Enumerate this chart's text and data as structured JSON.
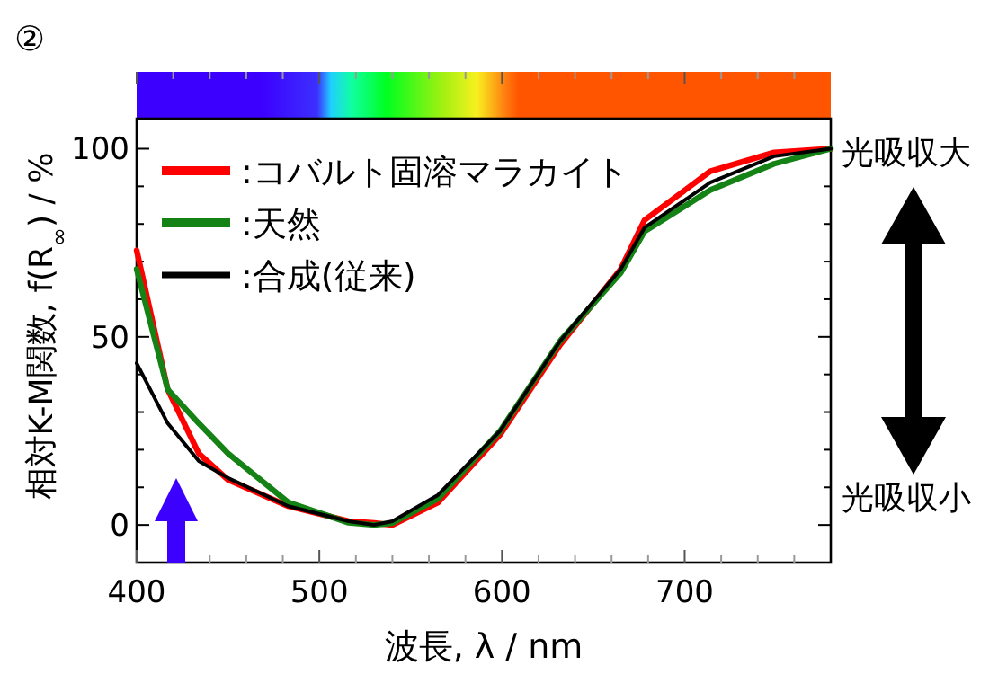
{
  "chart_data": {
    "type": "line",
    "title": "②",
    "xlabel": "波長, λ / nm",
    "ylabel": "相対K-M関数, f(R$_{∞}$) / %",
    "x": [
      400,
      417,
      434,
      450,
      483,
      516,
      530,
      540,
      565,
      599,
      632,
      665,
      678,
      714,
      749,
      780
    ],
    "series": [
      {
        "name": ":コバルト固溶マラカイト",
        "color": "#ff0000",
        "values": [
          73,
          36,
          19,
          12,
          5,
          1,
          0.5,
          0,
          6,
          24,
          48,
          68,
          81,
          94,
          99,
          100
        ]
      },
      {
        "name": ":天然",
        "color": "#148214",
        "values": [
          68,
          36,
          27,
          19,
          6,
          0.6,
          0,
          0.5,
          7,
          25,
          49,
          67,
          78,
          89,
          96,
          100
        ]
      },
      {
        "name": ":合成(従来)",
        "color": "#000000",
        "values": [
          43,
          27,
          17,
          12.5,
          5,
          1,
          0,
          1,
          8,
          25,
          49,
          68,
          79,
          91,
          98,
          100
        ]
      }
    ],
    "xlim": [
      400,
      780
    ],
    "ylim": [
      -10,
      108
    ],
    "xticks": [
      400,
      {
        "value": 420,
        "label": null
      },
      {
        "value": 440,
        "label": null
      },
      {
        "value": 460,
        "label": null
      },
      {
        "value": 480,
        "label": null
      },
      500,
      {
        "value": 520,
        "label": null
      },
      {
        "value": 540,
        "label": null
      },
      {
        "value": 560,
        "label": null
      },
      {
        "value": 580,
        "label": null
      },
      600,
      {
        "value": 620,
        "label": null
      },
      {
        "value": 640,
        "label": null
      },
      {
        "value": 660,
        "label": null
      },
      {
        "value": 680,
        "label": null
      },
      700,
      {
        "value": 720,
        "label": null
      },
      {
        "value": 740,
        "label": null
      },
      {
        "value": 760,
        "label": null
      }
    ],
    "yticks": [
      0,
      {
        "value": 10,
        "label": null
      },
      {
        "value": 20,
        "label": null
      },
      {
        "value": 30,
        "label": null
      },
      {
        "value": 40,
        "label": null
      },
      50,
      {
        "value": 60,
        "label": null
      },
      {
        "value": 70,
        "label": null
      },
      {
        "value": 80,
        "label": null
      },
      {
        "value": 90,
        "label": null
      },
      100
    ],
    "legend": "top left",
    "grid": false,
    "annotations": [
      "光吸収大",
      "光吸収小"
    ]
  }
}
